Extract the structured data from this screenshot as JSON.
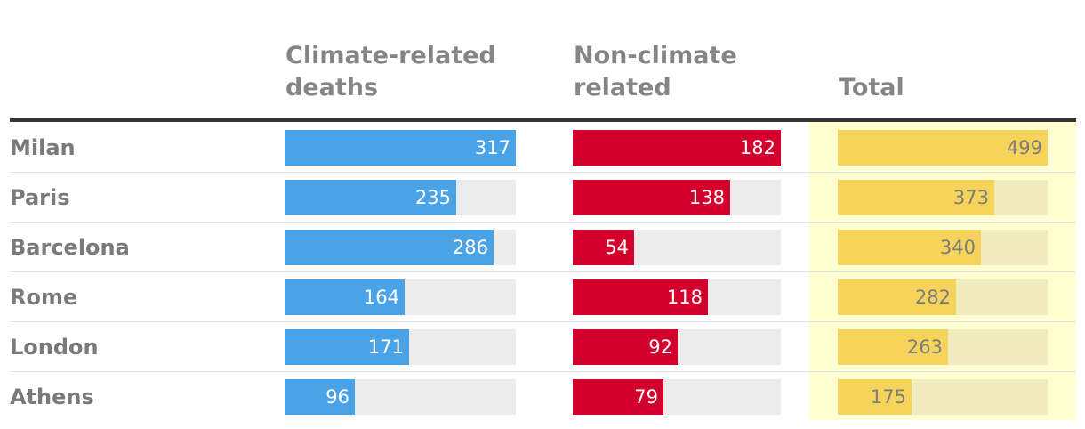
{
  "chart_data": {
    "type": "table",
    "title": "",
    "row_labels": [
      "Milan",
      "Paris",
      "Barcelona",
      "Rome",
      "London",
      "Athens"
    ],
    "columns": [
      {
        "key": "climate",
        "name": "Climate-related deaths",
        "header_lines": [
          "Climate-related",
          "deaths"
        ],
        "values": [
          317,
          235,
          286,
          164,
          171,
          96
        ],
        "max": 317,
        "bar_color": "#4ba3e7",
        "track_color": "#ececec",
        "label_color": "#ffffff"
      },
      {
        "key": "nonclimate",
        "name": "Non-climate related",
        "header_lines": [
          "Non-climate",
          "related"
        ],
        "values": [
          182,
          138,
          54,
          118,
          92,
          79
        ],
        "max": 182,
        "bar_color": "#d3002d",
        "track_color": "#ececec",
        "label_color": "#ffffff"
      },
      {
        "key": "total",
        "name": "Total",
        "header_lines": [
          "Total"
        ],
        "values": [
          499,
          373,
          340,
          282,
          263,
          175
        ],
        "max": 499,
        "bar_color": "#f6d45c",
        "track_color": "#f0ebc1",
        "label_color": "#7c7c7c",
        "highlight_color": "#fffdd2"
      }
    ]
  }
}
